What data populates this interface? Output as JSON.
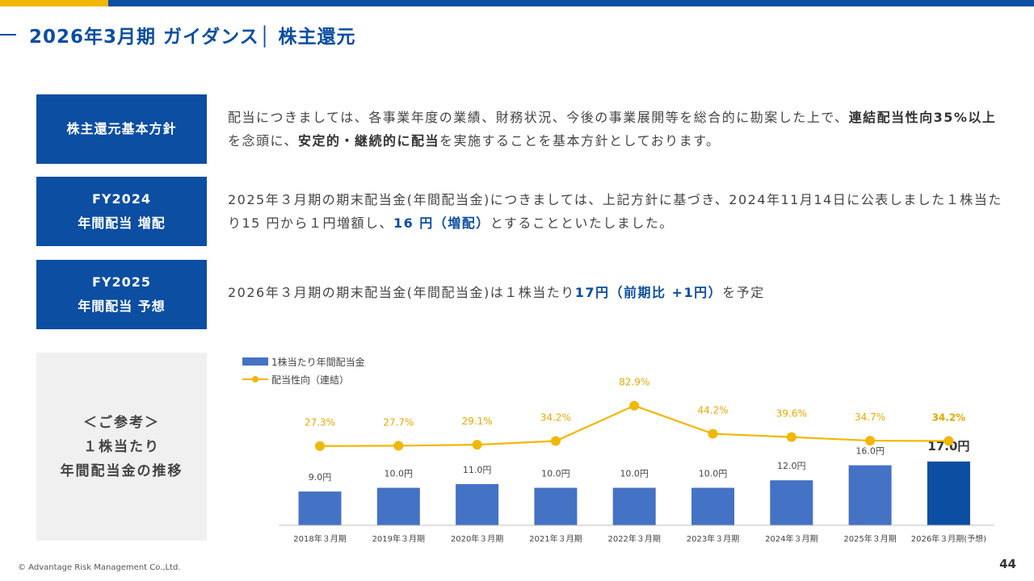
{
  "header": {
    "title": "2026年3月期 ガイダンス│ 株主還元"
  },
  "rows": [
    {
      "label_lines": [
        "株主還元基本方針"
      ],
      "text": {
        "p1": "配当につきましては、各事業年度の業績、財務状況、今後の事業展開等を総合的に勘案した上で、",
        "b1": "連結配当性向35%以上",
        "p2": "を念頭に、",
        "b2": "安定的・継続的に配当",
        "p3": "を実施することを基本方針としております。"
      }
    },
    {
      "label_lines": [
        "FY2024",
        "年間配当 増配"
      ],
      "text": {
        "p1": "2025年３月期の期末配当金(年間配当金)につきましては、上記方針に基づき、2024年11月14日に公表しました１株当たり15 円から１円増額し、",
        "b1": "16 円（増配）",
        "p2": "とすることといたしました。"
      }
    },
    {
      "label_lines": [
        "FY2025",
        "年間配当 予想"
      ],
      "text": {
        "p1": "2026年３月期の期末配当金(年間配当金)は１株当たり",
        "b1": "17円（前期比 +1円）",
        "p2": "を予定"
      }
    }
  ],
  "reference": {
    "lines": [
      "＜ご参考＞",
      "１株当たり",
      "年間配当金の推移"
    ]
  },
  "chart_data": {
    "type": "bar",
    "categories": [
      "2018年３月期",
      "2019年３月期",
      "2020年３月期",
      "2021年３月期",
      "2022年３月期",
      "2023年３月期",
      "2024年３月期",
      "2025年３月期",
      "2026年３月期(予想)"
    ],
    "series": [
      {
        "name": "1株当たり年間配当金",
        "type": "bar",
        "values": [
          9.0,
          10.0,
          11.0,
          10.0,
          10.0,
          10.0,
          12.0,
          16.0,
          17.0
        ],
        "labels": [
          "9.0円",
          "10.0円",
          "11.0円",
          "10.0円",
          "10.0円",
          "10.0円",
          "12.0円",
          "16.0円",
          "17.0円"
        ],
        "color": "#4472c4",
        "highlight_color": "#0b4ea2"
      },
      {
        "name": "配当性向（連結）",
        "type": "line",
        "values": [
          27.3,
          27.7,
          29.1,
          34.2,
          82.9,
          44.2,
          39.6,
          34.7,
          34.2
        ],
        "labels": [
          "27.3%",
          "27.7%",
          "29.1%",
          "34.2%",
          "82.9%",
          "44.2%",
          "39.6%",
          "34.7%",
          "34.2%"
        ],
        "color": "#f2b705"
      }
    ],
    "legend_position": "top-left",
    "grid": false
  },
  "footer": {
    "copyright": "© Advantage Risk Management Co.,Ltd.",
    "page": "44"
  }
}
